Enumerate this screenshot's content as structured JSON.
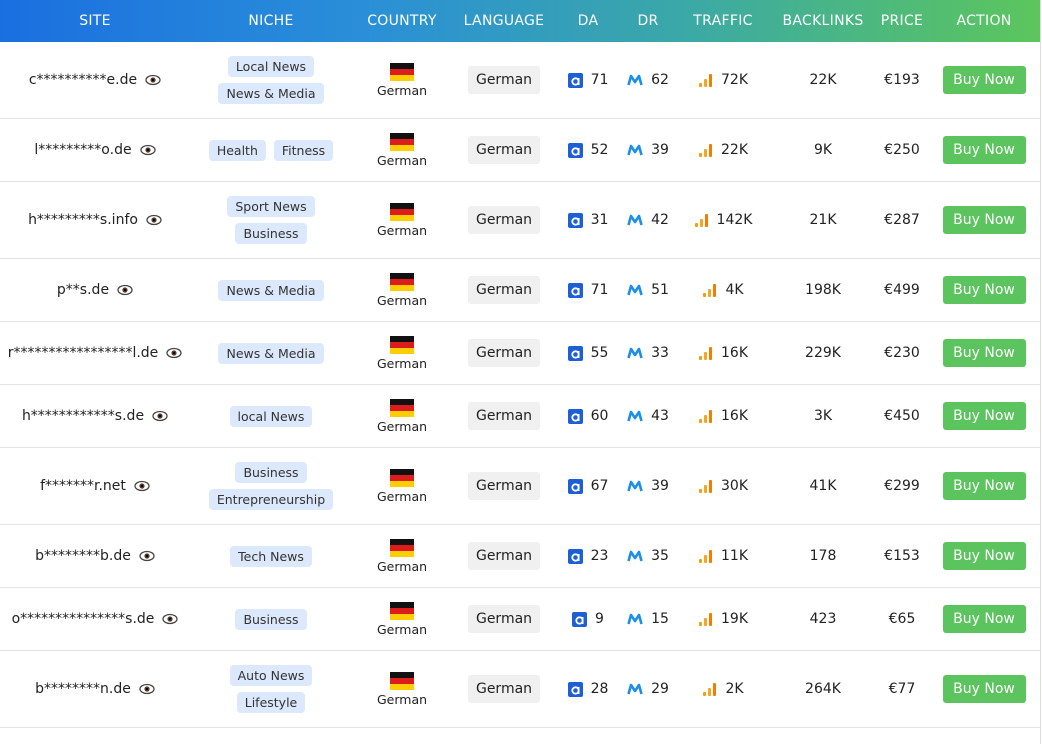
{
  "table": {
    "header": [
      "SITE",
      "NICHE",
      "COUNTRY",
      "LANGUAGE",
      "DA",
      "DR",
      "TRAFFIC",
      "BACKLINKS",
      "PRICE",
      "ACTION"
    ],
    "rows": [
      {
        "site": "c**********e.de",
        "niches": [
          "Local News",
          "News & Media"
        ],
        "country": "German",
        "language": "German",
        "da": 71,
        "dr": 62,
        "traffic": "72K",
        "backlinks": "22K",
        "price": "€193",
        "action": "Buy Now"
      },
      {
        "site": "l*********o.de",
        "niches": [
          "Health",
          "Fitness"
        ],
        "country": "German",
        "language": "German",
        "da": 52,
        "dr": 39,
        "traffic": "22K",
        "backlinks": "9K",
        "price": "€250",
        "action": "Buy Now"
      },
      {
        "site": "h*********s.info",
        "niches": [
          "Sport News",
          "Business"
        ],
        "country": "German",
        "language": "German",
        "da": 31,
        "dr": 42,
        "traffic": "142K",
        "backlinks": "21K",
        "price": "€287",
        "action": "Buy Now"
      },
      {
        "site": "p**s.de",
        "niches": [
          "News & Media"
        ],
        "country": "German",
        "language": "German",
        "da": 71,
        "dr": 51,
        "traffic": "4K",
        "backlinks": "198K",
        "price": "€499",
        "action": "Buy Now"
      },
      {
        "site": "r*****************l.de",
        "niches": [
          "News & Media"
        ],
        "country": "German",
        "language": "German",
        "da": 55,
        "dr": 33,
        "traffic": "16K",
        "backlinks": "229K",
        "price": "€230",
        "action": "Buy Now"
      },
      {
        "site": "h************s.de",
        "niches": [
          "local News"
        ],
        "country": "German",
        "language": "German",
        "da": 60,
        "dr": 43,
        "traffic": "16K",
        "backlinks": "3K",
        "price": "€450",
        "action": "Buy Now"
      },
      {
        "site": "f*******r.net",
        "niches": [
          "Business",
          "Entrepreneurship"
        ],
        "country": "German",
        "language": "German",
        "da": 67,
        "dr": 39,
        "traffic": "30K",
        "backlinks": "41K",
        "price": "€299",
        "action": "Buy Now"
      },
      {
        "site": "b********b.de",
        "niches": [
          "Tech News"
        ],
        "country": "German",
        "language": "German",
        "da": 23,
        "dr": 35,
        "traffic": "11K",
        "backlinks": "178",
        "price": "€153",
        "action": "Buy Now"
      },
      {
        "site": "o***************s.de",
        "niches": [
          "Business"
        ],
        "country": "German",
        "language": "German",
        "da": 9,
        "dr": 15,
        "traffic": "19K",
        "backlinks": "423",
        "price": "€65",
        "action": "Buy Now"
      },
      {
        "site": "b********n.de",
        "niches": [
          "Auto News",
          "Lifestyle"
        ],
        "country": "German",
        "language": "German",
        "da": 28,
        "dr": 29,
        "traffic": "2K",
        "backlinks": "264K",
        "price": "€77",
        "action": "Buy Now"
      }
    ]
  }
}
